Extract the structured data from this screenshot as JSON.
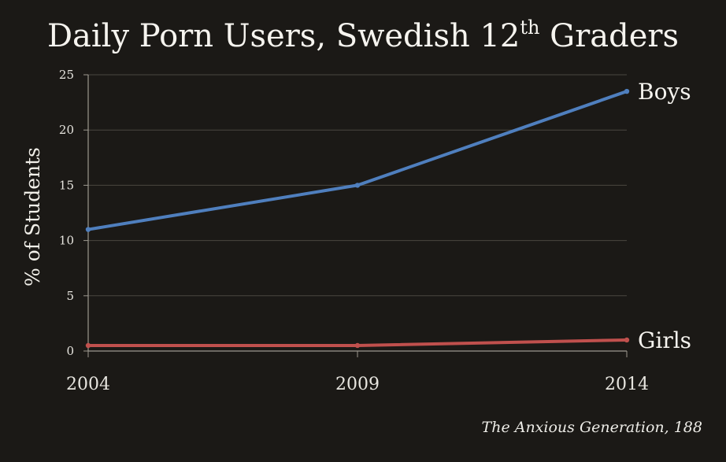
{
  "title": {
    "main": "Daily Porn Users, Swedish 12",
    "sup": "th",
    "rest": " Graders"
  },
  "source": "The Anxious Generation, 188",
  "chart_data": {
    "type": "line",
    "title": "Daily Porn Users, Swedish 12th Graders",
    "xlabel": "",
    "ylabel": "% of Students",
    "x": [
      "2004",
      "2009",
      "2014"
    ],
    "ylim": [
      0,
      25
    ],
    "yticks": [
      "0",
      "5",
      "10",
      "15",
      "20",
      "25"
    ],
    "grid": true,
    "legend": "series labels at right end of lines",
    "series": [
      {
        "name": "Boys",
        "values": [
          11,
          15,
          23.5
        ],
        "color": "#4f7fbe"
      },
      {
        "name": "Girls",
        "values": [
          0.5,
          0.5,
          1
        ],
        "color": "#c0504d"
      }
    ]
  },
  "colors": {
    "background": "#1b1916",
    "grid": "#4a4740",
    "axis": "#9c988f",
    "text": "#f4f2ec"
  }
}
